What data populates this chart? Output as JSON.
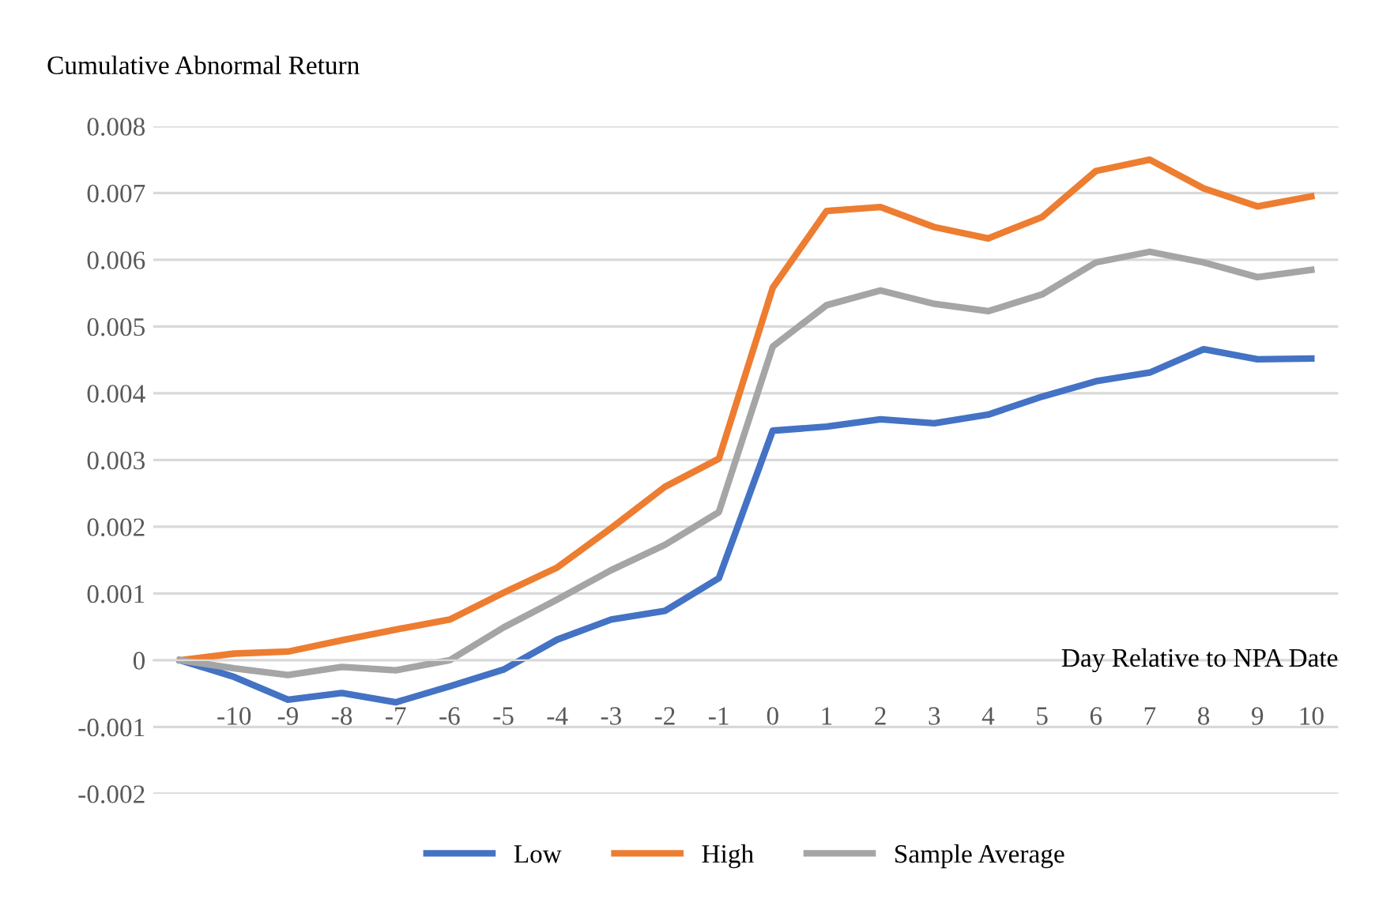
{
  "chart_data": {
    "type": "line",
    "xlabel": "Day Relative to NPA Date",
    "ylabel": "Cumulative Abnormal Return",
    "categories": [
      null,
      "-10",
      "-9",
      "-8",
      "-7",
      "-6",
      "-5",
      "-4",
      "-3",
      "-2",
      "-1",
      "0",
      "1",
      "2",
      "3",
      "4",
      "5",
      "6",
      "7",
      "8",
      "9",
      "10"
    ],
    "series": [
      {
        "name": "Low",
        "color": "#4472c4",
        "values": [
          0,
          -0.00025,
          -0.00059,
          -0.00049,
          -0.00063,
          -0.00039,
          -0.00014,
          0.00031,
          0.00061,
          0.00074,
          0.00123,
          0.00344,
          0.0035,
          0.00361,
          0.00355,
          0.00368,
          0.00395,
          0.00418,
          0.00431,
          0.00466,
          0.00451,
          0.00452
        ]
      },
      {
        "name": "High",
        "color": "#ed7d31",
        "values": [
          0,
          0.0001,
          0.00013,
          0.0003,
          0.00046,
          0.00061,
          0.00101,
          0.00139,
          0.00198,
          0.0026,
          0.00302,
          0.00558,
          0.00673,
          0.00679,
          0.00649,
          0.00632,
          0.00664,
          0.00733,
          0.0075,
          0.00707,
          0.0068,
          0.00695
        ]
      },
      {
        "name": "Sample Average",
        "color": "#a5a5a5",
        "values": [
          0,
          -0.00012,
          -0.00022,
          -0.0001,
          -0.00015,
          0,
          0.00049,
          0.00091,
          0.00135,
          0.00173,
          0.00222,
          0.0047,
          0.00532,
          0.00554,
          0.00534,
          0.00523,
          0.00548,
          0.00596,
          0.00612,
          0.00596,
          0.00574,
          0.00585
        ]
      }
    ],
    "ylim": [
      -0.002,
      0.008
    ],
    "yticks": [
      -0.002,
      -0.001,
      0,
      0.001,
      0.002,
      0.003,
      0.004,
      0.005,
      0.006,
      0.007,
      0.008
    ],
    "grid": "y",
    "legend": "bottom",
    "marker": "none",
    "line_style": "solid"
  }
}
